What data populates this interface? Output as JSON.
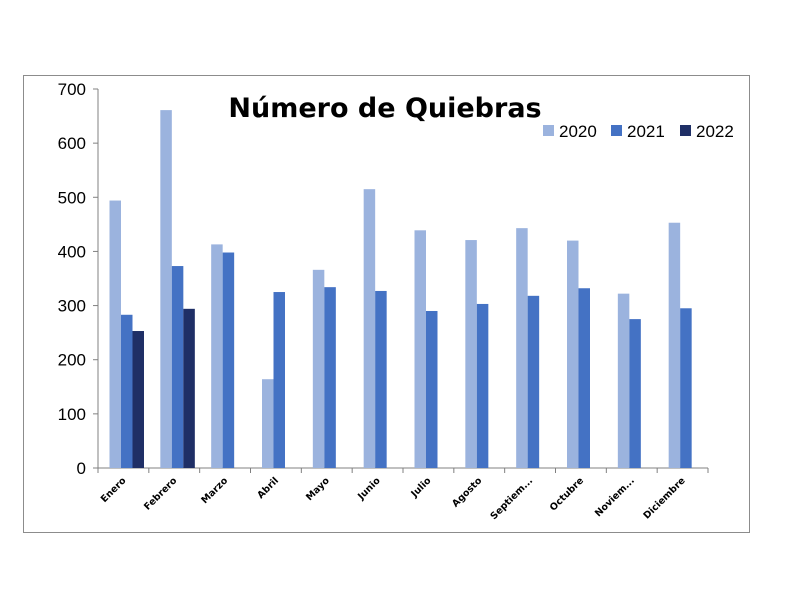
{
  "chart_data": {
    "type": "bar",
    "title": "Número de Quiebras",
    "xlabel": "",
    "ylabel": "",
    "ylim": [
      0,
      700
    ],
    "yticks": [
      0,
      100,
      200,
      300,
      400,
      500,
      600,
      700
    ],
    "grid": false,
    "legend_position": "top-right",
    "categories": [
      "Enero",
      "Febrero",
      "Marzo",
      "Abril",
      "Mayo",
      "Junio",
      "Julio",
      "Agosto",
      "Septiem...",
      "Octubre",
      "Noviem...",
      "Diciembre"
    ],
    "series": [
      {
        "name": "2020",
        "color": "#9bb3de",
        "values": [
          494,
          661,
          413,
          164,
          366,
          515,
          439,
          421,
          443,
          420,
          322,
          453
        ]
      },
      {
        "name": "2021",
        "color": "#4472c4",
        "values": [
          283,
          373,
          398,
          325,
          334,
          327,
          290,
          303,
          318,
          332,
          275,
          295
        ]
      },
      {
        "name": "2022",
        "color": "#1f2f66",
        "values": [
          253,
          294,
          null,
          null,
          null,
          null,
          null,
          null,
          null,
          null,
          null,
          null
        ]
      }
    ]
  }
}
